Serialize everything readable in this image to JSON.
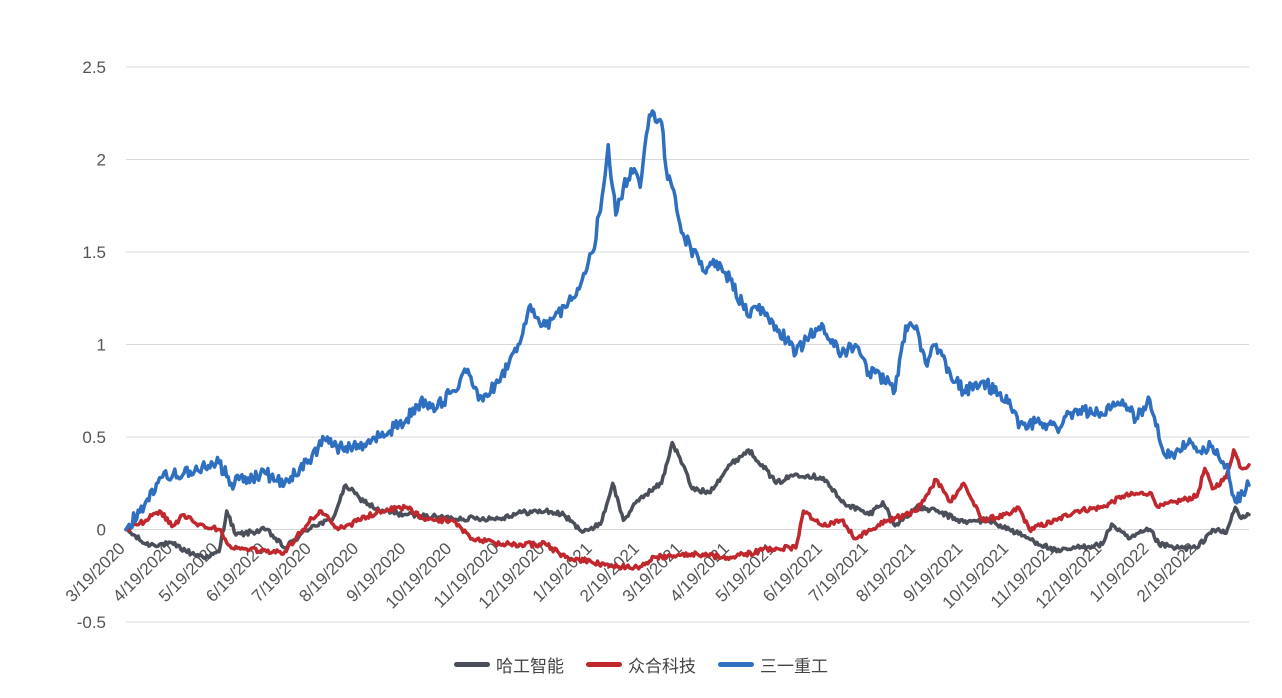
{
  "chart_data": {
    "type": "line",
    "title": "",
    "xlabel": "",
    "ylabel": "",
    "ylim": [
      -0.5,
      2.5
    ],
    "yticks": [
      "2.5",
      "2",
      "1.5",
      "1",
      "0.5",
      "0",
      "-0.5"
    ],
    "ytick_values": [
      2.5,
      2,
      1.5,
      1,
      0.5,
      0,
      -0.5
    ],
    "xlim": [
      "2020-03-19",
      "2022-03-25"
    ],
    "xticks": [
      "3/19/2020",
      "4/19/2020",
      "5/19/2020",
      "6/19/2020",
      "7/19/2020",
      "8/19/2020",
      "9/19/2020",
      "10/19/2020",
      "11/19/2020",
      "12/19/2020",
      "1/19/2021",
      "2/19/2021",
      "3/19/2021",
      "4/19/2021",
      "5/19/2021",
      "6/19/2021",
      "7/19/2021",
      "8/19/2021",
      "9/19/2021",
      "10/19/2021",
      "11/19/2021",
      "12/19/2021",
      "1/19/2022",
      "2/19/2022"
    ],
    "grid": true,
    "legend_position": "bottom",
    "series": [
      {
        "name": "哈工智能",
        "color": "#4a4f5a",
        "points": [
          [
            "2020-03-19",
            0.0
          ],
          [
            "2020-04-01",
            -0.08
          ],
          [
            "2020-04-19",
            -0.08
          ],
          [
            "2020-05-01",
            -0.13
          ],
          [
            "2020-05-12",
            -0.15
          ],
          [
            "2020-05-19",
            -0.12
          ],
          [
            "2020-05-24",
            0.1
          ],
          [
            "2020-05-30",
            -0.03
          ],
          [
            "2020-06-19",
            0.0
          ],
          [
            "2020-07-01",
            -0.1
          ],
          [
            "2020-07-19",
            0.02
          ],
          [
            "2020-08-01",
            0.05
          ],
          [
            "2020-08-10",
            0.24
          ],
          [
            "2020-08-19",
            0.17
          ],
          [
            "2020-09-01",
            0.1
          ],
          [
            "2020-09-19",
            0.08
          ],
          [
            "2020-10-19",
            0.06
          ],
          [
            "2020-11-19",
            0.06
          ],
          [
            "2020-12-01",
            0.09
          ],
          [
            "2020-12-19",
            0.1
          ],
          [
            "2020-12-31",
            0.08
          ],
          [
            "2021-01-10",
            0.0
          ],
          [
            "2021-01-19",
            0.0
          ],
          [
            "2021-01-25",
            0.05
          ],
          [
            "2021-02-01",
            0.25
          ],
          [
            "2021-02-08",
            0.05
          ],
          [
            "2021-02-19",
            0.17
          ],
          [
            "2021-03-05",
            0.25
          ],
          [
            "2021-03-12",
            0.47
          ],
          [
            "2021-03-19",
            0.35
          ],
          [
            "2021-03-25",
            0.22
          ],
          [
            "2021-04-05",
            0.2
          ],
          [
            "2021-04-19",
            0.35
          ],
          [
            "2021-05-01",
            0.43
          ],
          [
            "2021-05-10",
            0.35
          ],
          [
            "2021-05-19",
            0.25
          ],
          [
            "2021-06-01",
            0.3
          ],
          [
            "2021-06-19",
            0.28
          ],
          [
            "2021-07-01",
            0.15
          ],
          [
            "2021-07-19",
            0.08
          ],
          [
            "2021-07-28",
            0.15
          ],
          [
            "2021-08-05",
            0.02
          ],
          [
            "2021-08-19",
            0.12
          ],
          [
            "2021-09-01",
            0.1
          ],
          [
            "2021-09-19",
            0.04
          ],
          [
            "2021-10-05",
            0.05
          ],
          [
            "2021-10-19",
            0.0
          ],
          [
            "2021-11-01",
            -0.05
          ],
          [
            "2021-11-19",
            -0.12
          ],
          [
            "2021-12-01",
            -0.1
          ],
          [
            "2021-12-19",
            -0.08
          ],
          [
            "2021-12-25",
            0.03
          ],
          [
            "2022-01-05",
            -0.05
          ],
          [
            "2022-01-19",
            0.0
          ],
          [
            "2022-01-25",
            -0.08
          ],
          [
            "2022-02-05",
            -0.1
          ],
          [
            "2022-02-19",
            -0.1
          ],
          [
            "2022-03-01",
            0.0
          ],
          [
            "2022-03-10",
            -0.02
          ],
          [
            "2022-03-16",
            0.12
          ],
          [
            "2022-03-20",
            0.06
          ],
          [
            "2022-03-25",
            0.08
          ]
        ]
      },
      {
        "name": "众合科技",
        "color": "#c0282d",
        "points": [
          [
            "2020-03-19",
            0.0
          ],
          [
            "2020-04-01",
            0.05
          ],
          [
            "2020-04-10",
            0.1
          ],
          [
            "2020-04-19",
            0.02
          ],
          [
            "2020-04-26",
            0.08
          ],
          [
            "2020-05-05",
            0.02
          ],
          [
            "2020-05-19",
            0.0
          ],
          [
            "2020-05-27",
            -0.1
          ],
          [
            "2020-06-19",
            -0.12
          ],
          [
            "2020-07-01",
            -0.12
          ],
          [
            "2020-07-19",
            0.06
          ],
          [
            "2020-07-25",
            0.1
          ],
          [
            "2020-08-05",
            0.0
          ],
          [
            "2020-08-19",
            0.05
          ],
          [
            "2020-09-01",
            0.1
          ],
          [
            "2020-09-19",
            0.12
          ],
          [
            "2020-10-01",
            0.05
          ],
          [
            "2020-10-19",
            0.05
          ],
          [
            "2020-11-01",
            -0.05
          ],
          [
            "2020-11-19",
            -0.08
          ],
          [
            "2020-12-19",
            -0.08
          ],
          [
            "2021-01-01",
            -0.15
          ],
          [
            "2021-01-19",
            -0.18
          ],
          [
            "2021-02-01",
            -0.2
          ],
          [
            "2021-02-19",
            -0.2
          ],
          [
            "2021-03-01",
            -0.15
          ],
          [
            "2021-03-19",
            -0.13
          ],
          [
            "2021-04-19",
            -0.15
          ],
          [
            "2021-05-19",
            -0.1
          ],
          [
            "2021-06-01",
            -0.1
          ],
          [
            "2021-06-06",
            0.1
          ],
          [
            "2021-06-19",
            0.02
          ],
          [
            "2021-07-01",
            0.05
          ],
          [
            "2021-07-10",
            -0.05
          ],
          [
            "2021-07-19",
            0.0
          ],
          [
            "2021-08-01",
            0.05
          ],
          [
            "2021-08-19",
            0.1
          ],
          [
            "2021-09-01",
            0.27
          ],
          [
            "2021-09-10",
            0.15
          ],
          [
            "2021-09-19",
            0.25
          ],
          [
            "2021-10-01",
            0.05
          ],
          [
            "2021-10-19",
            0.08
          ],
          [
            "2021-10-25",
            0.12
          ],
          [
            "2021-11-01",
            0.0
          ],
          [
            "2021-11-19",
            0.05
          ],
          [
            "2021-12-01",
            0.1
          ],
          [
            "2021-12-19",
            0.12
          ],
          [
            "2022-01-01",
            0.18
          ],
          [
            "2022-01-19",
            0.2
          ],
          [
            "2022-01-25",
            0.12
          ],
          [
            "2022-02-05",
            0.15
          ],
          [
            "2022-02-19",
            0.18
          ],
          [
            "2022-02-24",
            0.33
          ],
          [
            "2022-03-01",
            0.22
          ],
          [
            "2022-03-10",
            0.28
          ],
          [
            "2022-03-15",
            0.43
          ],
          [
            "2022-03-20",
            0.33
          ],
          [
            "2022-03-25",
            0.35
          ]
        ]
      },
      {
        "name": "三一重工",
        "color": "#2f6fbf",
        "points": [
          [
            "2020-03-19",
            0.0
          ],
          [
            "2020-04-01",
            0.15
          ],
          [
            "2020-04-10",
            0.28
          ],
          [
            "2020-04-19",
            0.3
          ],
          [
            "2020-05-05",
            0.32
          ],
          [
            "2020-05-19",
            0.36
          ],
          [
            "2020-05-27",
            0.25
          ],
          [
            "2020-06-19",
            0.3
          ],
          [
            "2020-07-01",
            0.25
          ],
          [
            "2020-07-19",
            0.4
          ],
          [
            "2020-07-29",
            0.5
          ],
          [
            "2020-08-01",
            0.45
          ],
          [
            "2020-08-19",
            0.44
          ],
          [
            "2020-09-01",
            0.5
          ],
          [
            "2020-09-19",
            0.6
          ],
          [
            "2020-10-01",
            0.7
          ],
          [
            "2020-10-08",
            0.65
          ],
          [
            "2020-10-19",
            0.75
          ],
          [
            "2020-10-28",
            0.85
          ],
          [
            "2020-11-05",
            0.7
          ],
          [
            "2020-11-19",
            0.8
          ],
          [
            "2020-12-01",
            1.0
          ],
          [
            "2020-12-08",
            1.2
          ],
          [
            "2020-12-19",
            1.1
          ],
          [
            "2021-01-01",
            1.2
          ],
          [
            "2021-01-10",
            1.3
          ],
          [
            "2021-01-19",
            1.5
          ],
          [
            "2021-01-25",
            1.8
          ],
          [
            "2021-01-29",
            2.08
          ],
          [
            "2021-02-03",
            1.7
          ],
          [
            "2021-02-08",
            1.85
          ],
          [
            "2021-02-15",
            1.95
          ],
          [
            "2021-02-19",
            1.85
          ],
          [
            "2021-02-25",
            2.24
          ],
          [
            "2021-03-05",
            2.2
          ],
          [
            "2021-03-08",
            1.95
          ],
          [
            "2021-03-12",
            1.85
          ],
          [
            "2021-03-19",
            1.6
          ],
          [
            "2021-04-01",
            1.4
          ],
          [
            "2021-04-10",
            1.45
          ],
          [
            "2021-04-19",
            1.35
          ],
          [
            "2021-05-01",
            1.15
          ],
          [
            "2021-05-10",
            1.2
          ],
          [
            "2021-05-19",
            1.1
          ],
          [
            "2021-06-01",
            0.95
          ],
          [
            "2021-06-10",
            1.05
          ],
          [
            "2021-06-19",
            1.1
          ],
          [
            "2021-07-01",
            0.95
          ],
          [
            "2021-07-10",
            1.0
          ],
          [
            "2021-07-19",
            0.85
          ],
          [
            "2021-08-01",
            0.8
          ],
          [
            "2021-08-05",
            0.75
          ],
          [
            "2021-08-12",
            1.1
          ],
          [
            "2021-08-19",
            1.1
          ],
          [
            "2021-08-25",
            0.9
          ],
          [
            "2021-09-01",
            1.0
          ],
          [
            "2021-09-10",
            0.85
          ],
          [
            "2021-09-19",
            0.75
          ],
          [
            "2021-10-01",
            0.8
          ],
          [
            "2021-10-19",
            0.7
          ],
          [
            "2021-10-25",
            0.55
          ],
          [
            "2021-11-01",
            0.58
          ],
          [
            "2021-11-19",
            0.55
          ],
          [
            "2021-12-01",
            0.65
          ],
          [
            "2021-12-19",
            0.62
          ],
          [
            "2022-01-01",
            0.7
          ],
          [
            "2022-01-10",
            0.6
          ],
          [
            "2022-01-19",
            0.7
          ],
          [
            "2022-01-29",
            0.4
          ],
          [
            "2022-02-05",
            0.42
          ],
          [
            "2022-02-15",
            0.47
          ],
          [
            "2022-02-19",
            0.42
          ],
          [
            "2022-03-01",
            0.45
          ],
          [
            "2022-03-10",
            0.35
          ],
          [
            "2022-03-16",
            0.15
          ],
          [
            "2022-03-25",
            0.24
          ]
        ]
      }
    ]
  }
}
